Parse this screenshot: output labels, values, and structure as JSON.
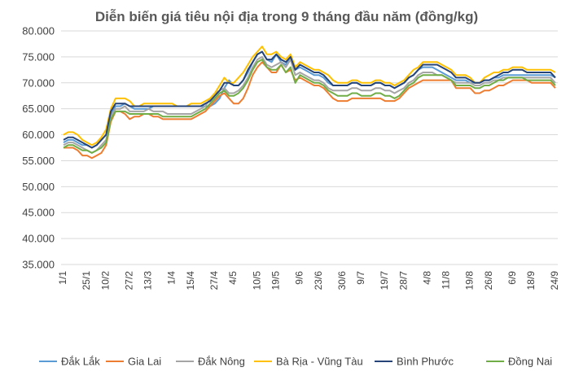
{
  "chart_data": {
    "type": "line",
    "title": "Diễn biến giá tiêu nội địa trong 9 tháng đầu năm (đồng/kg)",
    "xlabel": "",
    "ylabel": "",
    "ylim": [
      35000,
      80000
    ],
    "y_ticks": [
      "35.000",
      "40.000",
      "45.000",
      "50.000",
      "55.000",
      "60.000",
      "65.000",
      "70.000",
      "75.000",
      "80.000"
    ],
    "x_tick_labels": [
      "1/1",
      "25/1",
      "10/2",
      "27/2",
      "13/3",
      "1/4",
      "15/4",
      "27/4",
      "4/5",
      "10/5",
      "19/5",
      "9/6",
      "23/6",
      "30/6",
      "9/7",
      "19/7",
      "28/7",
      "4/8",
      "11/8",
      "19/8",
      "26/8",
      "6/9",
      "18/9",
      "24/9"
    ],
    "grid": true,
    "legend_position": "bottom",
    "series": [
      {
        "name": "Đắk Lắk",
        "color": "#5B9BD5",
        "values": [
          58500,
          59000,
          59000,
          58500,
          58000,
          58000,
          57500,
          58000,
          59000,
          60000,
          64000,
          65500,
          65500,
          66000,
          65500,
          65000,
          65000,
          65000,
          65000,
          65500,
          65500,
          65500,
          65500,
          65500,
          65500,
          65500,
          65500,
          65500,
          65500,
          65500,
          65500,
          65500,
          66000,
          67000,
          69000,
          70500,
          69500,
          69500,
          70500,
          72000,
          74000,
          75500,
          76000,
          74500,
          74000,
          75500,
          74000,
          73500,
          75000,
          72500,
          73000,
          72500,
          72000,
          71500,
          71500,
          71000,
          70000,
          69500,
          69500,
          69500,
          69500,
          70000,
          70000,
          69500,
          69500,
          69500,
          70000,
          70000,
          69500,
          69500,
          69000,
          69500,
          70000,
          71000,
          71500,
          72500,
          73000,
          73000,
          73000,
          72500,
          72000,
          71500,
          71000,
          70500,
          70500,
          70500,
          70000,
          70000,
          70000,
          70500,
          70500,
          71000,
          71000,
          71500,
          71500,
          71500,
          71500,
          71500,
          71500,
          71500,
          71500,
          71500,
          71500,
          71500,
          71000
        ]
      },
      {
        "name": "Gia Lai",
        "color": "#ED7D31",
        "values": [
          57500,
          57500,
          57500,
          57000,
          56000,
          56000,
          55500,
          56000,
          56500,
          58000,
          62500,
          64500,
          64500,
          64000,
          63000,
          63500,
          63500,
          64000,
          64000,
          63500,
          63500,
          63000,
          63000,
          63000,
          63000,
          63000,
          63000,
          63000,
          63500,
          64000,
          64500,
          65500,
          66500,
          67500,
          68000,
          67000,
          66000,
          66000,
          67000,
          69000,
          71500,
          73000,
          74000,
          73000,
          72000,
          72000,
          73500,
          72000,
          72500,
          70500,
          71000,
          70500,
          70000,
          69500,
          69500,
          69000,
          68000,
          67000,
          66500,
          66500,
          66500,
          67000,
          67000,
          67000,
          67000,
          67000,
          67000,
          67000,
          66500,
          66500,
          66500,
          67000,
          68000,
          69000,
          69500,
          70000,
          70500,
          70500,
          70500,
          70500,
          70500,
          70500,
          70500,
          69000,
          69000,
          69000,
          69000,
          68000,
          68000,
          68500,
          68500,
          69000,
          69500,
          69500,
          70000,
          70500,
          70500,
          70500,
          70500,
          70000,
          70000,
          70000,
          70000,
          70000,
          69000
        ]
      },
      {
        "name": "Đắk Nông",
        "color": "#A5A5A5",
        "values": [
          58000,
          58500,
          58500,
          58000,
          57500,
          57000,
          56500,
          57000,
          58000,
          59000,
          63500,
          65000,
          65000,
          65500,
          64500,
          64500,
          64500,
          64500,
          65000,
          64500,
          64500,
          64500,
          64000,
          64000,
          64000,
          64000,
          64000,
          64000,
          64500,
          65000,
          65500,
          67000,
          68000,
          68500,
          69000,
          68000,
          68000,
          68500,
          69500,
          71000,
          73000,
          74500,
          75000,
          73500,
          73000,
          73500,
          74000,
          73000,
          74500,
          71500,
          72000,
          71500,
          71000,
          70500,
          70500,
          70000,
          69000,
          68500,
          68500,
          68500,
          68500,
          69000,
          69000,
          68500,
          68500,
          68500,
          69000,
          69000,
          68500,
          68500,
          68000,
          68500,
          69000,
          70000,
          70500,
          71500,
          72000,
          72000,
          72000,
          71500,
          71500,
          71000,
          70500,
          70000,
          70000,
          70000,
          70000,
          69500,
          69500,
          70000,
          70000,
          70500,
          70500,
          71000,
          71000,
          71000,
          71000,
          71000,
          71000,
          71000,
          71000,
          71000,
          71000,
          71000,
          70000
        ]
      },
      {
        "name": "Bà Rịa - Vũng Tàu",
        "color": "#FFC000",
        "values": [
          60000,
          60500,
          60500,
          60000,
          59000,
          58500,
          58000,
          58500,
          59500,
          61000,
          65000,
          67000,
          67000,
          67000,
          66500,
          65500,
          65500,
          66000,
          66000,
          66000,
          66000,
          66000,
          66000,
          66000,
          65500,
          65500,
          65500,
          66000,
          66000,
          66000,
          66500,
          67000,
          68000,
          69500,
          71000,
          70000,
          70000,
          71000,
          72000,
          73500,
          75000,
          76000,
          77000,
          75500,
          75500,
          76000,
          75000,
          74500,
          75500,
          73000,
          74000,
          73500,
          73000,
          72500,
          72500,
          72000,
          71500,
          70500,
          70000,
          70000,
          70000,
          70500,
          70500,
          70000,
          70000,
          70000,
          70500,
          70500,
          70000,
          70000,
          69500,
          70000,
          70500,
          71500,
          72500,
          73000,
          74000,
          74000,
          74000,
          74000,
          73500,
          73000,
          72500,
          71500,
          71500,
          71500,
          71000,
          70000,
          70000,
          71000,
          71500,
          72000,
          72000,
          72500,
          72500,
          73000,
          73000,
          73000,
          72500,
          72500,
          72500,
          72500,
          72500,
          72500,
          72000
        ]
      },
      {
        "name": "Bình Phước",
        "color": "#264478",
        "values": [
          59000,
          59500,
          59500,
          59000,
          58500,
          58000,
          57500,
          58000,
          59000,
          60000,
          64500,
          66000,
          66000,
          66000,
          65500,
          65500,
          65500,
          65500,
          65500,
          65500,
          65500,
          65500,
          65500,
          65500,
          65500,
          65500,
          65500,
          65500,
          65500,
          65500,
          66000,
          66500,
          67500,
          68500,
          70000,
          70000,
          69500,
          69500,
          70500,
          72500,
          74000,
          75500,
          76000,
          74500,
          74500,
          75500,
          74500,
          74000,
          75000,
          72500,
          73500,
          73000,
          72500,
          72000,
          72000,
          71500,
          70500,
          69500,
          69500,
          69500,
          69500,
          70000,
          70000,
          69500,
          69500,
          69500,
          70000,
          70000,
          69500,
          69500,
          69000,
          69500,
          70000,
          71000,
          71500,
          72500,
          73500,
          73500,
          73500,
          73500,
          73000,
          72500,
          72000,
          71000,
          71000,
          71000,
          70500,
          70000,
          70000,
          70500,
          70500,
          71000,
          71500,
          72000,
          72000,
          72500,
          72500,
          72500,
          72000,
          72000,
          72000,
          72000,
          72000,
          72000,
          71000
        ]
      },
      {
        "name": "Đồng Nai",
        "color": "#70AD47",
        "values": [
          57500,
          58000,
          58000,
          57500,
          57000,
          57000,
          56500,
          57000,
          57500,
          58500,
          63000,
          64500,
          64500,
          64500,
          64000,
          64000,
          64000,
          64000,
          64000,
          64000,
          64000,
          63500,
          63500,
          63500,
          63500,
          63500,
          63500,
          63500,
          64000,
          64500,
          65000,
          66000,
          67000,
          68000,
          68500,
          67500,
          67500,
          68000,
          69000,
          70500,
          72500,
          74000,
          74500,
          73000,
          72500,
          72500,
          73500,
          72000,
          73000,
          70000,
          71500,
          71000,
          70500,
          70000,
          70000,
          69500,
          68500,
          68000,
          67500,
          67500,
          67500,
          68000,
          68000,
          67500,
          67500,
          67500,
          68000,
          68000,
          67500,
          67500,
          67000,
          67500,
          68500,
          69500,
          70000,
          71000,
          71500,
          71500,
          71500,
          71500,
          71500,
          71000,
          70500,
          69500,
          69500,
          69500,
          69500,
          69000,
          69000,
          69500,
          69500,
          70000,
          70500,
          70500,
          71000,
          71000,
          71000,
          71000,
          70500,
          70500,
          70500,
          70500,
          70500,
          70500,
          69500
        ]
      }
    ]
  }
}
